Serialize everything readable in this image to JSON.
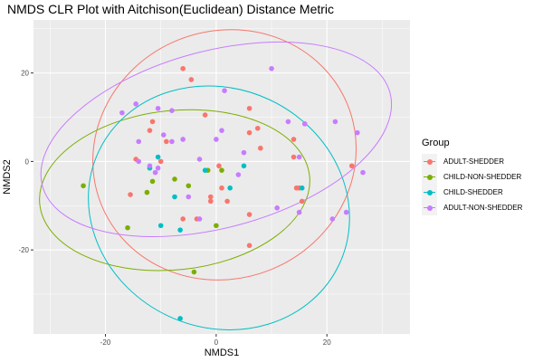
{
  "chart_data": {
    "type": "scatter",
    "title": "NMDS CLR Plot with Aitchison(Euclidean) Distance Metric",
    "xlabel": "NMDS1",
    "ylabel": "NMDS2",
    "xlim": [
      -33,
      35
    ],
    "ylim": [
      -39,
      32
    ],
    "x_ticks": [
      -20,
      0,
      20
    ],
    "y_ticks": [
      -20,
      0,
      20
    ],
    "grid": true,
    "legend_position": "right",
    "legend_title": "Group",
    "series": [
      {
        "name": "ADULT-SHEDDER",
        "color": "#F8766D",
        "points": [
          [
            -15.5,
            -7.5
          ],
          [
            -14.5,
            0.5
          ],
          [
            -12,
            7
          ],
          [
            -11.5,
            9
          ],
          [
            -10,
            0
          ],
          [
            -9,
            4.5
          ],
          [
            -6,
            -13
          ],
          [
            -3.5,
            -13
          ],
          [
            -2,
            10.5
          ],
          [
            -1,
            -9
          ],
          [
            0.5,
            -1
          ],
          [
            1,
            -6
          ],
          [
            6,
            -12
          ],
          [
            6,
            12
          ],
          [
            6,
            6.5
          ],
          [
            7.5,
            7.5
          ],
          [
            8,
            3
          ],
          [
            14,
            5
          ],
          [
            14,
            1
          ],
          [
            14.5,
            -6
          ],
          [
            15,
            -6
          ],
          [
            15.5,
            -9
          ],
          [
            24.5,
            -1
          ],
          [
            6,
            -19
          ],
          [
            -4.5,
            18.5
          ],
          [
            -6,
            21
          ],
          [
            2,
            -9
          ],
          [
            -1,
            -8
          ]
        ]
      },
      {
        "name": "CHILD-NON-SHEDDER",
        "color": "#7CAE00",
        "points": [
          [
            -24,
            -5.5
          ],
          [
            -16,
            -15
          ],
          [
            -12.5,
            -7
          ],
          [
            -11.5,
            -4.5
          ],
          [
            -7.5,
            -4
          ],
          [
            -5,
            -5.5
          ],
          [
            -1.5,
            -2
          ],
          [
            0,
            -14.5
          ],
          [
            1,
            -2
          ],
          [
            -4,
            -25
          ]
        ]
      },
      {
        "name": "CHILD-SHEDDER",
        "color": "#00BFC4",
        "points": [
          [
            -10.5,
            1
          ],
          [
            -12,
            -1.5
          ],
          [
            -7.5,
            -8
          ],
          [
            -10,
            -14.5
          ],
          [
            -6.5,
            -15.5
          ],
          [
            -2,
            -2
          ],
          [
            2.5,
            -6
          ],
          [
            5,
            -1
          ],
          [
            15.5,
            -6
          ],
          [
            -6.5,
            -35.5
          ]
        ]
      },
      {
        "name": "ADULT-NON-SHEDDER",
        "color": "#C77CFF",
        "points": [
          [
            -17,
            11
          ],
          [
            -14.5,
            13
          ],
          [
            -14,
            4.5
          ],
          [
            -14,
            0
          ],
          [
            -11,
            -2.5
          ],
          [
            -10.5,
            12
          ],
          [
            -10.5,
            -1.5
          ],
          [
            -9.5,
            6
          ],
          [
            -8,
            11.5
          ],
          [
            -8,
            4.5
          ],
          [
            -6,
            5
          ],
          [
            -5,
            -8
          ],
          [
            -3,
            -13
          ],
          [
            -3,
            0.5
          ],
          [
            0,
            5
          ],
          [
            1,
            7
          ],
          [
            1.5,
            16
          ],
          [
            4,
            -3
          ],
          [
            5,
            2
          ],
          [
            10,
            21
          ],
          [
            11,
            -10.5
          ],
          [
            13,
            9
          ],
          [
            15,
            1
          ],
          [
            15,
            -11.5
          ],
          [
            16,
            8.5
          ],
          [
            21,
            -13
          ],
          [
            21.5,
            9
          ],
          [
            23.5,
            -11.5
          ],
          [
            25.5,
            6.5
          ],
          [
            26.5,
            -2.5
          ],
          [
            -12,
            -1
          ]
        ]
      }
    ],
    "ellipses": [
      {
        "series": "ADULT-SHEDDER",
        "center": [
          1.5,
          1.5
        ],
        "rx": 24.0,
        "ry": 28.0,
        "angle_deg": -22
      },
      {
        "series": "CHILD-NON-SHEDDER",
        "center": [
          -7.5,
          -6.5
        ],
        "rx": 24.5,
        "ry": 18.0,
        "angle_deg": -6
      },
      {
        "series": "CHILD-SHEDDER",
        "center": [
          0.5,
          -10.5
        ],
        "rx": 24.0,
        "ry": 27.0,
        "angle_deg": 25
      },
      {
        "series": "ADULT-NON-SHEDDER",
        "center": [
          0,
          5
        ],
        "rx": 32.5,
        "ry": 20.0,
        "angle_deg": -15
      }
    ]
  }
}
